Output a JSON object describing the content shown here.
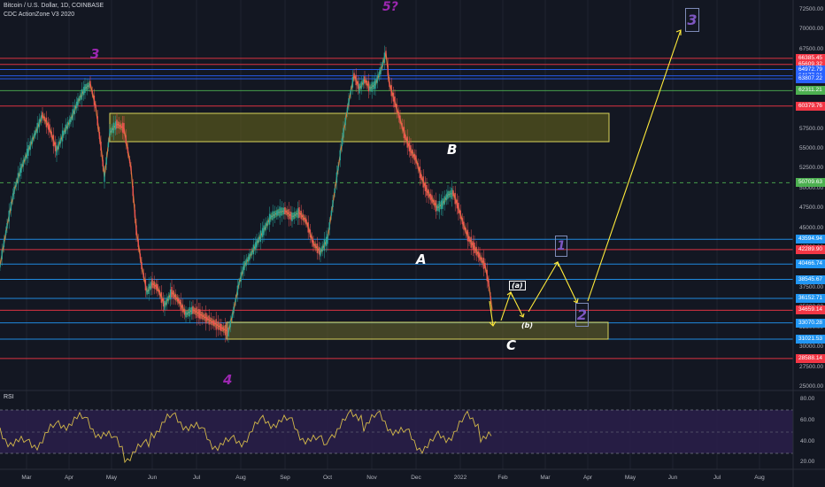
{
  "header": {
    "title": "Bitcoin / U.S. Dollar, 1D, COINBASE",
    "indicator": "CDC ActionZone V3 2020"
  },
  "rsi_label": "RSI",
  "price_axis": [
    "72500.00",
    "70000.00",
    "67500.00",
    "65000.00",
    "62500.00",
    "60000.00",
    "57500.00",
    "55000.00",
    "52500.00",
    "50000.00",
    "47500.00",
    "45000.00",
    "42500.00",
    "40000.00",
    "37500.00",
    "35000.00",
    "32500.00",
    "30000.00",
    "27500.00",
    "25000.00"
  ],
  "price_labels": [
    {
      "text": "66385.45",
      "color": "#f23645"
    },
    {
      "text": "65609.32",
      "color": "#f23645"
    },
    {
      "text": "64972.79",
      "color": "#2962ff"
    },
    {
      "text": "64177.31",
      "color": "#2962ff"
    },
    {
      "text": "63807.22",
      "color": "#2962ff"
    },
    {
      "text": "62311.21",
      "color": "#4caf50"
    },
    {
      "text": "60379.76",
      "color": "#f23645"
    },
    {
      "text": "50709.63",
      "color": "#4caf50"
    },
    {
      "text": "43594.94",
      "color": "#2196f3"
    },
    {
      "text": "42289.90",
      "color": "#f23645"
    },
    {
      "text": "40466.74",
      "color": "#2196f3"
    },
    {
      "text": "38545.67",
      "color": "#2196f3"
    },
    {
      "text": "36152.71",
      "color": "#2196f3"
    },
    {
      "text": "34659.14",
      "color": "#f23645"
    },
    {
      "text": "33070.28",
      "color": "#2196f3"
    },
    {
      "text": "31021.53",
      "color": "#2196f3"
    },
    {
      "text": "28588.14",
      "color": "#f23645"
    }
  ],
  "rsi_axis": [
    "80.00",
    "60.00",
    "40.00",
    "20.00"
  ],
  "months": [
    "Mar",
    "Apr",
    "May",
    "Jun",
    "Jul",
    "Aug",
    "Sep",
    "Oct",
    "Nov",
    "Dec",
    "2022",
    "Feb",
    "Mar",
    "Apr",
    "May",
    "Jun",
    "Jul",
    "Aug"
  ],
  "waves": {
    "w3": "3",
    "w4": "4",
    "w5": "5?",
    "wA": "A",
    "wB": "B",
    "wC": "C",
    "wa": "(a)",
    "wb": "(b)",
    "w1": "1",
    "w2": "2",
    "w3target": "3"
  },
  "colors": {
    "background": "#131722",
    "bull": "#26a69a",
    "bear": "#ef5350",
    "zone": "#ffeb3b",
    "rsi_line": "#d4b94a",
    "rsi_band": "#2a1e4a",
    "wave_purple": "#9c27b0",
    "arrow": "#ffeb3b"
  }
}
